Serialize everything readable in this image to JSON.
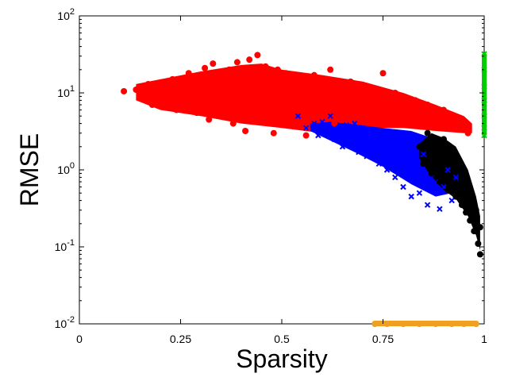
{
  "chart_data": {
    "type": "scatter",
    "xlabel": "Sparsity",
    "ylabel": "RMSE",
    "xlim": [
      0,
      1
    ],
    "ylim": [
      0.01,
      100
    ],
    "yscale": "log",
    "grid": false,
    "legend": "none",
    "x_ticks": [
      {
        "value": 0,
        "label": "0"
      },
      {
        "value": 0.25,
        "label": "0.25"
      },
      {
        "value": 0.5,
        "label": "0.5"
      },
      {
        "value": 0.75,
        "label": "0.75"
      },
      {
        "value": 1,
        "label": "1"
      }
    ],
    "y_ticks": [
      {
        "value": 0.01,
        "base": "10",
        "exp": "-2"
      },
      {
        "value": 0.1,
        "base": "10",
        "exp": "-1"
      },
      {
        "value": 1,
        "base": "10",
        "exp": "0"
      },
      {
        "value": 10,
        "base": "10",
        "exp": "1"
      },
      {
        "value": 100,
        "base": "10",
        "exp": "2"
      }
    ],
    "series": [
      {
        "color": "#ff0000",
        "marker": "circle",
        "points": [
          [
            0.11,
            10.5
          ],
          [
            0.14,
            11.0
          ],
          [
            0.15,
            8.5
          ],
          [
            0.17,
            13.0
          ],
          [
            0.18,
            7.0
          ],
          [
            0.2,
            12.0
          ],
          [
            0.22,
            9.0
          ],
          [
            0.23,
            15.0
          ],
          [
            0.24,
            6.0
          ],
          [
            0.25,
            11.0
          ],
          [
            0.27,
            18.0
          ],
          [
            0.28,
            8.0
          ],
          [
            0.29,
            5.5
          ],
          [
            0.3,
            14.0
          ],
          [
            0.31,
            21.0
          ],
          [
            0.32,
            4.5
          ],
          [
            0.33,
            24.0
          ],
          [
            0.34,
            10.0
          ],
          [
            0.35,
            16.0
          ],
          [
            0.36,
            5.0
          ],
          [
            0.37,
            20.0
          ],
          [
            0.38,
            4.0
          ],
          [
            0.39,
            25.0
          ],
          [
            0.4,
            12.0
          ],
          [
            0.41,
            3.2
          ],
          [
            0.42,
            27.0
          ],
          [
            0.43,
            9.0
          ],
          [
            0.44,
            31.0
          ],
          [
            0.45,
            5.0
          ],
          [
            0.46,
            22.0
          ],
          [
            0.47,
            14.0
          ],
          [
            0.48,
            3.0
          ],
          [
            0.49,
            20.0
          ],
          [
            0.5,
            8.0
          ],
          [
            0.51,
            18.0
          ],
          [
            0.52,
            4.0
          ],
          [
            0.53,
            16.0
          ],
          [
            0.54,
            6.0
          ],
          [
            0.55,
            15.0
          ],
          [
            0.56,
            2.8
          ],
          [
            0.57,
            12.0
          ],
          [
            0.58,
            17.0
          ],
          [
            0.59,
            5.0
          ],
          [
            0.6,
            14.0
          ],
          [
            0.61,
            9.0
          ],
          [
            0.62,
            20.0
          ],
          [
            0.63,
            4.0
          ],
          [
            0.64,
            13.0
          ],
          [
            0.65,
            10.0
          ],
          [
            0.66,
            6.0
          ],
          [
            0.67,
            14.0
          ],
          [
            0.68,
            8.0
          ],
          [
            0.7,
            12.0
          ],
          [
            0.72,
            6.0
          ],
          [
            0.74,
            11.0
          ],
          [
            0.75,
            18.0
          ],
          [
            0.76,
            8.0
          ],
          [
            0.78,
            10.0
          ],
          [
            0.8,
            9.0
          ],
          [
            0.81,
            6.0
          ],
          [
            0.83,
            8.0
          ],
          [
            0.85,
            5.0
          ],
          [
            0.86,
            7.0
          ],
          [
            0.88,
            5.0
          ],
          [
            0.9,
            6.0
          ],
          [
            0.91,
            4.5
          ],
          [
            0.92,
            5.0
          ],
          [
            0.94,
            4.0
          ],
          [
            0.95,
            4.0
          ],
          [
            0.96,
            3.0
          ]
        ]
      },
      {
        "color": "#0000ff",
        "marker": "x",
        "points": [
          [
            0.54,
            5.0
          ],
          [
            0.56,
            3.5
          ],
          [
            0.58,
            4.0
          ],
          [
            0.59,
            2.8
          ],
          [
            0.6,
            4.2
          ],
          [
            0.61,
            3.0
          ],
          [
            0.62,
            5.0
          ],
          [
            0.63,
            2.5
          ],
          [
            0.64,
            3.5
          ],
          [
            0.65,
            2.0
          ],
          [
            0.66,
            3.8
          ],
          [
            0.67,
            2.2
          ],
          [
            0.68,
            4.0
          ],
          [
            0.69,
            1.7
          ],
          [
            0.7,
            3.0
          ],
          [
            0.71,
            1.5
          ],
          [
            0.72,
            2.5
          ],
          [
            0.73,
            1.8
          ],
          [
            0.74,
            1.2
          ],
          [
            0.75,
            2.8
          ],
          [
            0.76,
            1.0
          ],
          [
            0.77,
            2.0
          ],
          [
            0.78,
            0.8
          ],
          [
            0.79,
            1.5
          ],
          [
            0.8,
            0.6
          ],
          [
            0.81,
            2.2
          ],
          [
            0.82,
            0.45
          ],
          [
            0.83,
            1.2
          ],
          [
            0.84,
            0.5
          ],
          [
            0.85,
            1.6
          ],
          [
            0.86,
            0.35
          ],
          [
            0.87,
            0.8
          ],
          [
            0.88,
            0.7
          ],
          [
            0.89,
            0.31
          ],
          [
            0.9,
            0.6
          ],
          [
            0.91,
            1.0
          ],
          [
            0.92,
            0.4
          ],
          [
            0.93,
            0.8
          ]
        ]
      },
      {
        "color": "#000000",
        "marker": "circle",
        "points": [
          [
            0.84,
            2.0
          ],
          [
            0.85,
            1.2
          ],
          [
            0.86,
            3.0
          ],
          [
            0.87,
            0.9
          ],
          [
            0.88,
            1.8
          ],
          [
            0.89,
            0.7
          ],
          [
            0.9,
            2.5
          ],
          [
            0.91,
            0.55
          ],
          [
            0.92,
            1.4
          ],
          [
            0.93,
            0.45
          ],
          [
            0.94,
            1.0
          ],
          [
            0.945,
            0.35
          ],
          [
            0.95,
            0.8
          ],
          [
            0.955,
            0.28
          ],
          [
            0.96,
            0.6
          ],
          [
            0.965,
            0.22
          ],
          [
            0.97,
            0.45
          ],
          [
            0.975,
            0.16
          ],
          [
            0.98,
            0.3
          ],
          [
            0.985,
            0.11
          ],
          [
            0.99,
            0.18
          ],
          [
            0.99,
            0.08
          ]
        ]
      },
      {
        "color": "#00cc00",
        "marker": "x",
        "points": [
          [
            1.0,
            32.0
          ],
          [
            1.0,
            20.0
          ],
          [
            1.0,
            12.0
          ],
          [
            1.0,
            8.0
          ],
          [
            1.0,
            5.0
          ],
          [
            1.0,
            3.5
          ],
          [
            1.0,
            2.8
          ]
        ]
      },
      {
        "color": "#f0a020",
        "marker": "circle",
        "points": [
          [
            0.73,
            0.01
          ],
          [
            0.76,
            0.01
          ],
          [
            0.8,
            0.01
          ],
          [
            0.84,
            0.01
          ],
          [
            0.88,
            0.01
          ],
          [
            0.92,
            0.01
          ],
          [
            0.95,
            0.01
          ],
          [
            0.98,
            0.01
          ]
        ]
      }
    ]
  }
}
